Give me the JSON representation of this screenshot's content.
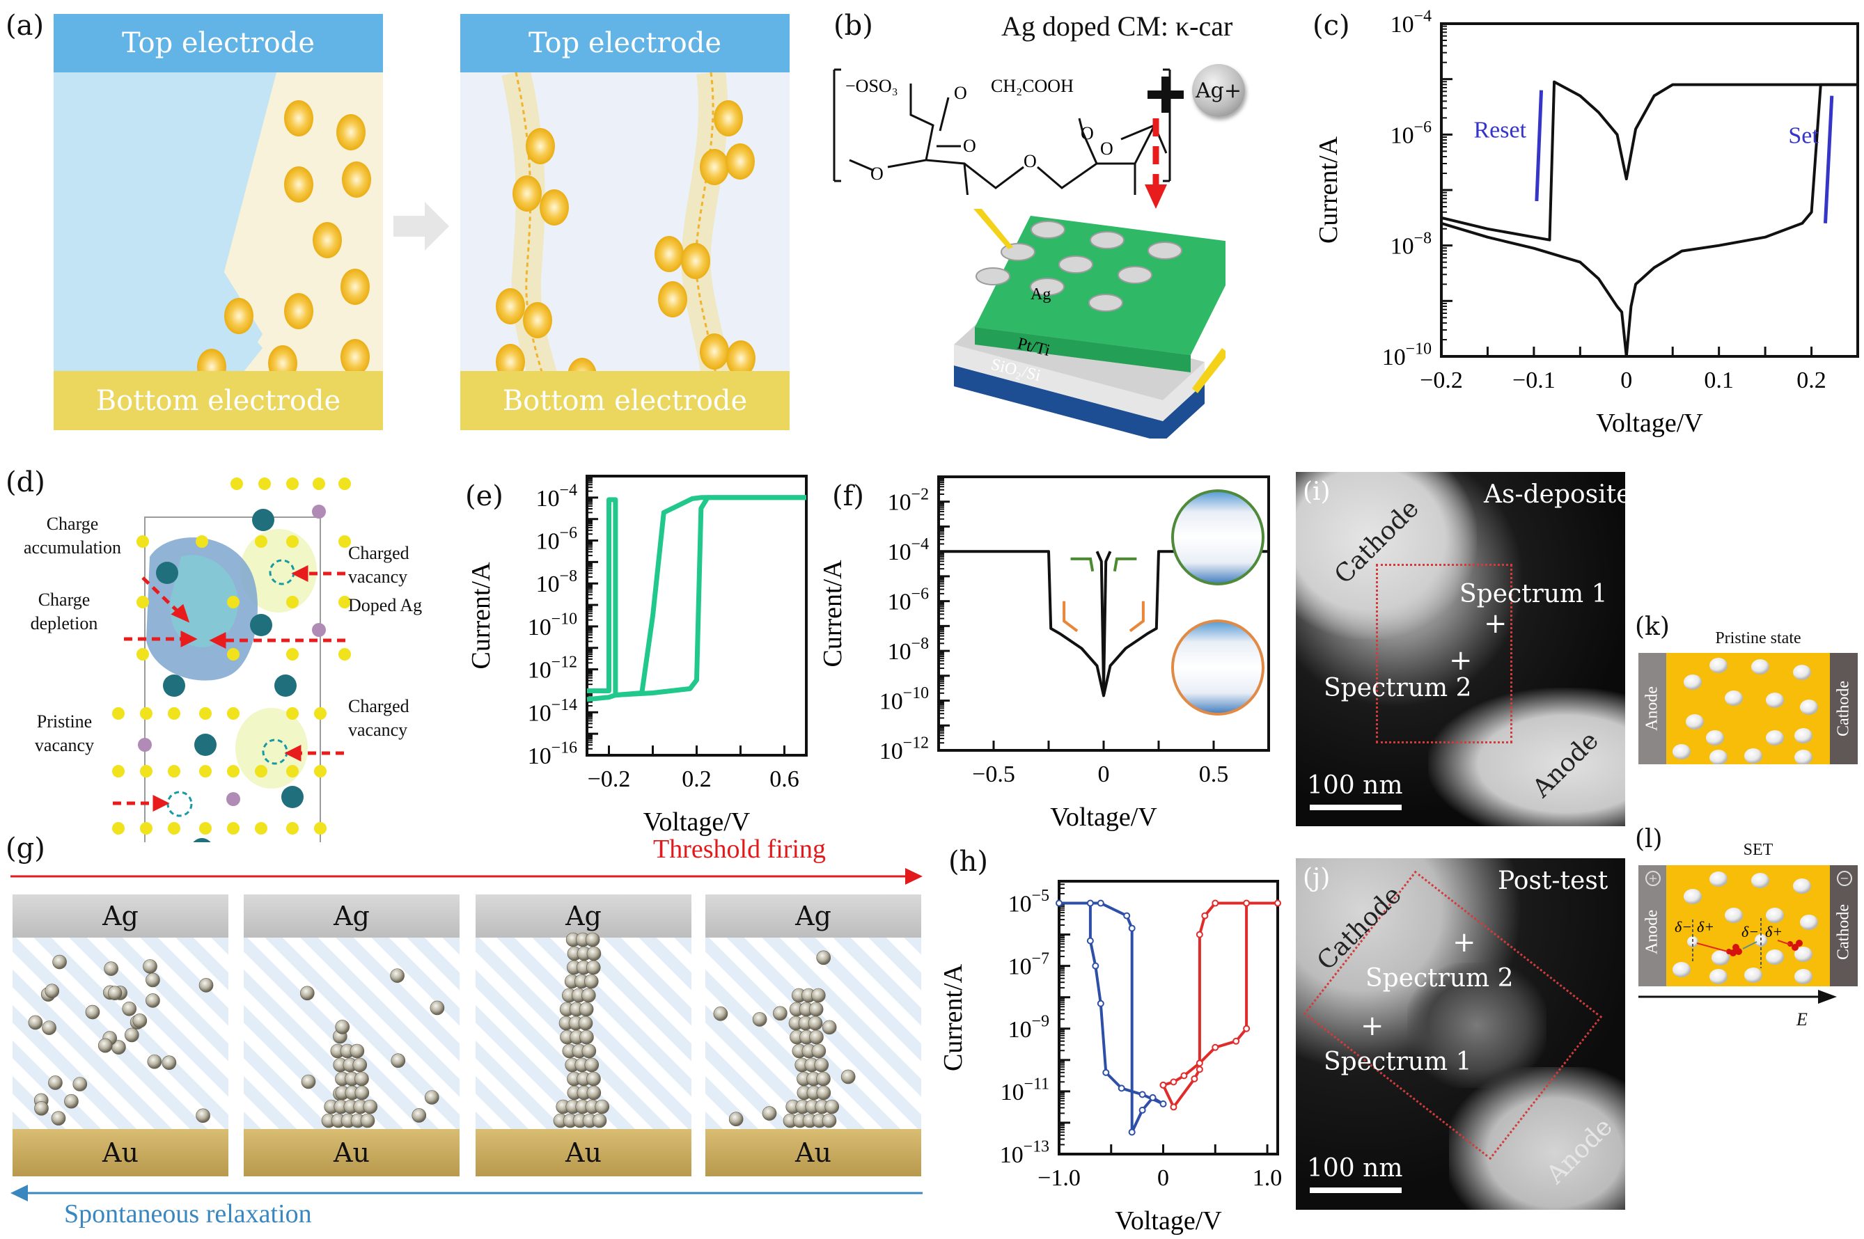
{
  "figure": {
    "panel_labels": [
      "(a)",
      "(b)",
      "(c)",
      "(d)",
      "(e)",
      "(f)",
      "(g)",
      "(h)",
      "(i)",
      "(j)",
      "(k)",
      "(l)"
    ]
  },
  "panel_a": {
    "left": {
      "top_label": "Top electrode",
      "bottom_label": "Bottom electrode"
    },
    "right": {
      "top_label": "Top electrode",
      "bottom_label": "Bottom electrode"
    },
    "colors": {
      "top_electrode": "#62b3e6",
      "bottom_electrode": "#ebd65e",
      "particle": "#f5c02a",
      "matrix": "#f7f2d9",
      "injection": "#c2e4f4"
    }
  },
  "panel_b": {
    "title": "Ag doped CM: κ-car",
    "formula_labels": [
      "−OSO₃",
      "O",
      "CH₂COOH",
      "O",
      "O",
      "O",
      "O",
      "O",
      "OH",
      "OH"
    ],
    "plus": "+",
    "ion_label": "Ag+",
    "device_labels": {
      "electrode": "Ag",
      "bottom": "Pt/Ti",
      "substrate": "SiO₂/Si"
    },
    "colors": {
      "film": "#2fb866",
      "pt": "#e6e6e6",
      "substrate": "#1d4e93",
      "arrow": "#e81c1c"
    }
  },
  "panel_d": {
    "annotations": [
      "Charge accumulation",
      "Charge depletion",
      "Pristine vacancy",
      "Charged vacancy",
      "Doped Ag",
      "Charged vacancy"
    ]
  },
  "panel_g": {
    "top_arrow_label": "Threshold firing",
    "bottom_arrow_label": "Spontaneous relaxation",
    "top_electrode": "Ag",
    "bottom_electrode": "Au",
    "frames": 4,
    "colors": {
      "firing": "#e31a1c",
      "relaxation": "#3a87c0",
      "ag": "#c9c9c9",
      "au": "#c8ab60"
    }
  },
  "panel_i": {
    "title": "As-deposite",
    "labels": [
      "Cathode",
      "Anode",
      "Spectrum 1",
      "Spectrum 2"
    ],
    "scale_bar": "100 nm"
  },
  "panel_j": {
    "title": "Post-test",
    "labels": [
      "Cathode",
      "Anode",
      "Spectrum 2",
      "Spectrum 1"
    ],
    "scale_bar": "100 nm"
  },
  "panel_k": {
    "title": "Pristine state",
    "left_label": "Anode",
    "right_label": "Cathode"
  },
  "panel_l": {
    "title": "SET",
    "left_label": "Anode",
    "right_label": "Cathode",
    "left_sign": "+",
    "right_sign": "−",
    "charges": [
      "δ−",
      "δ+",
      "δ−",
      "δ+"
    ],
    "field_label": "E"
  },
  "chart_data": [
    {
      "id": "c",
      "type": "line",
      "title": "",
      "xlabel": "Voltage/V",
      "ylabel": "Current/A",
      "yscale": "log",
      "xlim": [
        -0.2,
        0.25
      ],
      "ylim_exp": [
        -10,
        -4
      ],
      "xticks": [
        -0.2,
        -0.1,
        0,
        0.1,
        0.2
      ],
      "xtick_labels": [
        "−0.2",
        "−0.1",
        "0",
        "0.1",
        "0.2"
      ],
      "yticks_exp": [
        -10,
        -8,
        -6,
        -4
      ],
      "ytick_labels": [
        "10−10",
        "10−8",
        "10−6",
        "10−4"
      ],
      "annotations": [
        {
          "text": "Reset",
          "color": "#3535c8"
        },
        {
          "text": "Set",
          "color": "#3535c8"
        }
      ],
      "series": [
        {
          "name": "sweep",
          "color": "#111111",
          "x": [
            -0.2,
            -0.15,
            -0.1,
            -0.083,
            -0.078,
            -0.05,
            -0.03,
            -0.01,
            0.0,
            0.01,
            0.03,
            0.05,
            0.1,
            0.2,
            0.25
          ],
          "y_exp": [
            -7.5,
            -7.7,
            -7.85,
            -7.9,
            -5.05,
            -5.3,
            -5.6,
            -6.0,
            -6.8,
            -5.9,
            -5.3,
            -5.1,
            -5.1,
            -5.1,
            -5.1
          ]
        },
        {
          "name": "sweep-low",
          "color": "#111111",
          "x": [
            0.25,
            0.21,
            0.2,
            0.19,
            0.15,
            0.1,
            0.06,
            0.03,
            0.01,
            0.005,
            0.0,
            -0.005,
            -0.01,
            -0.03,
            -0.05,
            -0.1,
            -0.15,
            -0.2
          ],
          "y_exp": [
            -5.1,
            -5.1,
            -7.4,
            -7.6,
            -7.85,
            -8.0,
            -8.1,
            -8.4,
            -8.7,
            -9.1,
            -10,
            -9.2,
            -9.1,
            -8.6,
            -8.3,
            -8.05,
            -7.85,
            -7.6
          ]
        }
      ]
    },
    {
      "id": "e",
      "type": "line",
      "xlabel": "Voltage/V",
      "ylabel": "Current/A",
      "yscale": "log",
      "xlim": [
        -0.3,
        0.7
      ],
      "ylim_exp": [
        -16,
        -3
      ],
      "xticks": [
        -0.2,
        0.2,
        0.6
      ],
      "xtick_labels": [
        "−0.2",
        "0.2",
        "0.6"
      ],
      "yticks_exp": [
        -16,
        -14,
        -12,
        -10,
        -8,
        -6,
        -4
      ],
      "ytick_labels": [
        "10−16",
        "10−14",
        "10−12",
        "10−10",
        "10−8",
        "10−6",
        "10−4"
      ],
      "series": [
        {
          "name": "cycles",
          "color": "#20c98b",
          "x": [
            -0.3,
            -0.2,
            -0.2,
            -0.17,
            -0.17,
            -0.05,
            0.0,
            0.05,
            0.18,
            0.22,
            0.7
          ],
          "y_exp": [
            -13,
            -13,
            -4.1,
            -4.1,
            -13.2,
            -13.1,
            -9.5,
            -4.7,
            -4.05,
            -4.0,
            -4.0
          ]
        },
        {
          "name": "cycles-return",
          "color": "#20c98b",
          "x": [
            0.7,
            0.25,
            0.22,
            0.2,
            0.17,
            0.0,
            -0.17,
            -0.2,
            -0.3
          ],
          "y_exp": [
            -4.0,
            -4.0,
            -4.5,
            -12.5,
            -12.9,
            -13.1,
            -13.2,
            -13.3,
            -13.4
          ]
        }
      ]
    },
    {
      "id": "f",
      "type": "line",
      "xlabel": "Voltage/V",
      "ylabel": "Current/A",
      "yscale": "log",
      "xlim": [
        -0.75,
        0.75
      ],
      "ylim_exp": [
        -12,
        -1
      ],
      "xticks": [
        -0.5,
        0,
        0.5
      ],
      "xtick_labels": [
        "−0.5",
        "0",
        "0.5"
      ],
      "yticks_exp": [
        -12,
        -10,
        -8,
        -6,
        -4,
        -2
      ],
      "ytick_labels": [
        "10−12",
        "10−10",
        "10−8",
        "10−6",
        "10−4",
        "10−2"
      ],
      "arrows": [
        {
          "color": "#4a8a30",
          "meaning": "reset direction"
        },
        {
          "color": "#e8863a",
          "meaning": "set direction"
        }
      ],
      "series": [
        {
          "name": "iv",
          "color": "#111111",
          "x": [
            -0.75,
            -0.25,
            -0.24,
            -0.2,
            -0.1,
            -0.03,
            0.0,
            0.03,
            0.1,
            0.2,
            0.24,
            0.25,
            0.75
          ],
          "y_exp": [
            -4,
            -4,
            -7.1,
            -7.3,
            -7.9,
            -8.6,
            -9.8,
            -8.6,
            -7.9,
            -7.3,
            -7.1,
            -4,
            -4
          ]
        },
        {
          "name": "iv-inner",
          "color": "#111111",
          "x": [
            -0.03,
            -0.01,
            0.0,
            0.01,
            0.03
          ],
          "y_exp": [
            -4,
            -4.4,
            -9.5,
            -4.4,
            -4
          ]
        }
      ]
    },
    {
      "id": "h",
      "type": "line",
      "xlabel": "Voltage/V",
      "ylabel": "Current/A",
      "yscale": "log",
      "xlim": [
        -1.0,
        1.1
      ],
      "ylim_exp": [
        -13,
        -4.3
      ],
      "xticks": [
        -1.0,
        0,
        1.0
      ],
      "xtick_labels": [
        "−1.0",
        "0",
        "1.0"
      ],
      "yticks_exp": [
        -13,
        -11,
        -9,
        -7,
        -5
      ],
      "ytick_labels": [
        "10−13",
        "10−11",
        "10−9",
        "10−7",
        "10−5"
      ],
      "series": [
        {
          "name": "negative sweep",
          "color": "#2d4fa8",
          "x": [
            -1.0,
            -0.6,
            -0.35,
            -0.3,
            -0.3,
            -0.2,
            -0.1,
            0.0,
            -0.2,
            -0.4,
            -0.55,
            -0.6,
            -0.65,
            -0.7,
            -0.7
          ],
          "y_exp": [
            -5,
            -5,
            -5.4,
            -5.8,
            -12.3,
            -11.6,
            -11.2,
            -11.4,
            -11.1,
            -10.9,
            -10.4,
            -8.2,
            -7.0,
            -6.2,
            -5
          ]
        },
        {
          "name": "positive sweep",
          "color": "#e12b2b",
          "x": [
            0.0,
            0.1,
            0.3,
            0.35,
            0.35,
            0.4,
            0.5,
            1.1,
            0.8,
            0.8,
            0.7,
            0.5,
            0.35,
            0.2,
            0.1,
            0.0
          ],
          "y_exp": [
            -10.8,
            -11.5,
            -10.6,
            -10.3,
            -6.0,
            -5.4,
            -5.0,
            -5.0,
            -5.0,
            -9.0,
            -9.4,
            -9.6,
            -10.1,
            -10.5,
            -10.7,
            -10.8
          ]
        }
      ]
    }
  ]
}
